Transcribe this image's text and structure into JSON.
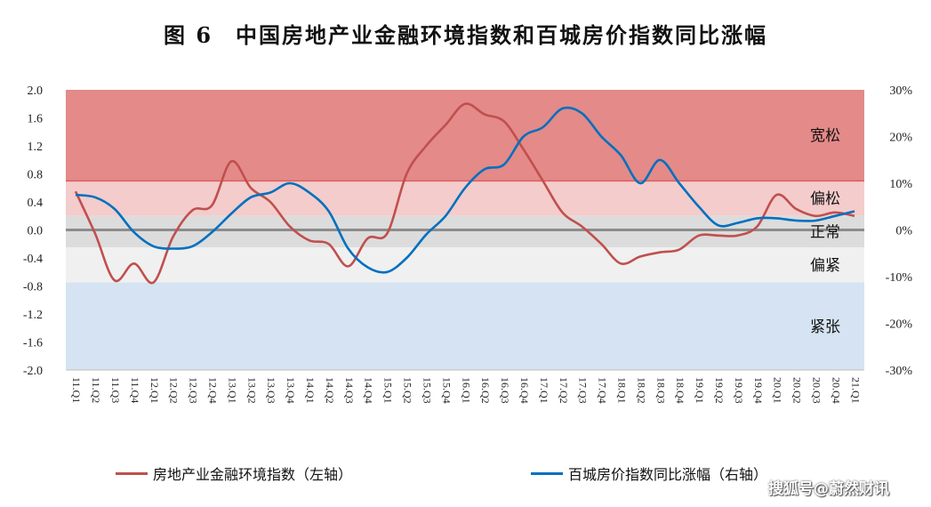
{
  "title": "图 6　中国房地产业金融环境指数和百城房价指数同比涨幅",
  "chart_data": {
    "type": "line",
    "categories": [
      "11.Q1",
      "11.Q2",
      "11.Q3",
      "11.Q4",
      "12.Q1",
      "12.Q2",
      "12.Q3",
      "12.Q4",
      "13.Q1",
      "13.Q2",
      "13.Q3",
      "13.Q4",
      "14.Q1",
      "14.Q2",
      "14.Q3",
      "14.Q4",
      "15.Q1",
      "15.Q2",
      "15.Q3",
      "15.Q4",
      "16.Q1",
      "16.Q2",
      "16.Q3",
      "16.Q4",
      "17.Q1",
      "17.Q2",
      "17.Q3",
      "17.Q4",
      "18.Q1",
      "18.Q2",
      "18.Q3",
      "18.Q4",
      "19.Q1",
      "19.Q2",
      "19.Q3",
      "19.Q4",
      "20.Q1",
      "20.Q2",
      "20.Q3",
      "20.Q4",
      "21.Q1"
    ],
    "series": [
      {
        "name": "房地产业金融环境指数（左轴）",
        "axis": "left",
        "color": "#C0504D",
        "values": [
          0.55,
          -0.05,
          -0.72,
          -0.48,
          -0.75,
          -0.1,
          0.28,
          0.35,
          0.98,
          0.6,
          0.4,
          0.05,
          -0.15,
          -0.2,
          -0.52,
          -0.12,
          -0.05,
          0.8,
          1.2,
          1.5,
          1.8,
          1.65,
          1.55,
          1.15,
          0.7,
          0.25,
          0.05,
          -0.2,
          -0.48,
          -0.38,
          -0.32,
          -0.28,
          -0.08,
          -0.08,
          -0.08,
          0.05,
          0.5,
          0.3,
          0.2,
          0.25,
          0.2
        ]
      },
      {
        "name": "百城房价指数同比涨幅（右轴）",
        "axis": "right",
        "color": "#0070C0",
        "values": [
          7.5,
          7,
          4.5,
          -0.5,
          -3.5,
          -4,
          -3.5,
          -0.5,
          3.5,
          7,
          8,
          10,
          8,
          4,
          -4,
          -8,
          -9,
          -6,
          -1,
          3,
          9,
          13,
          14,
          20,
          22,
          26,
          25,
          20,
          16,
          10,
          15,
          10,
          5,
          1,
          1.5,
          2.5,
          2.5,
          2,
          2,
          3,
          4
        ]
      }
    ],
    "left_axis": {
      "ticks": [
        "2.0",
        "1.6",
        "1.2",
        "0.8",
        "0.4",
        "0.0",
        "-0.4",
        "-0.8",
        "-1.2",
        "-1.6",
        "-2.0"
      ],
      "range": [
        -2.0,
        2.0
      ]
    },
    "right_axis": {
      "ticks": [
        "30%",
        "20%",
        "10%",
        "0%",
        "-10%",
        "-20%",
        "-30%"
      ],
      "range": [
        -30,
        30
      ]
    },
    "zones": [
      {
        "label": "宽松",
        "from": 0.7,
        "to": 2.0,
        "color": "#E48A88"
      },
      {
        "label": "偏松",
        "from": 0.2,
        "to": 0.7,
        "color": "#F3CCCB"
      },
      {
        "label": "正常",
        "from": -0.25,
        "to": 0.2,
        "color": "#DCDCDC"
      },
      {
        "label": "偏紧",
        "from": -0.75,
        "to": -0.25,
        "color": "#F0F0F0"
      },
      {
        "label": "紧张",
        "from": -2.0,
        "to": -0.75,
        "color": "#D5E3F2"
      }
    ]
  },
  "legend": {
    "left_label": "房地产业金融环境指数（左轴）",
    "right_label": "百城房价指数同比涨幅（右轴）"
  },
  "watermark": "搜狐号@蔚然财讯"
}
